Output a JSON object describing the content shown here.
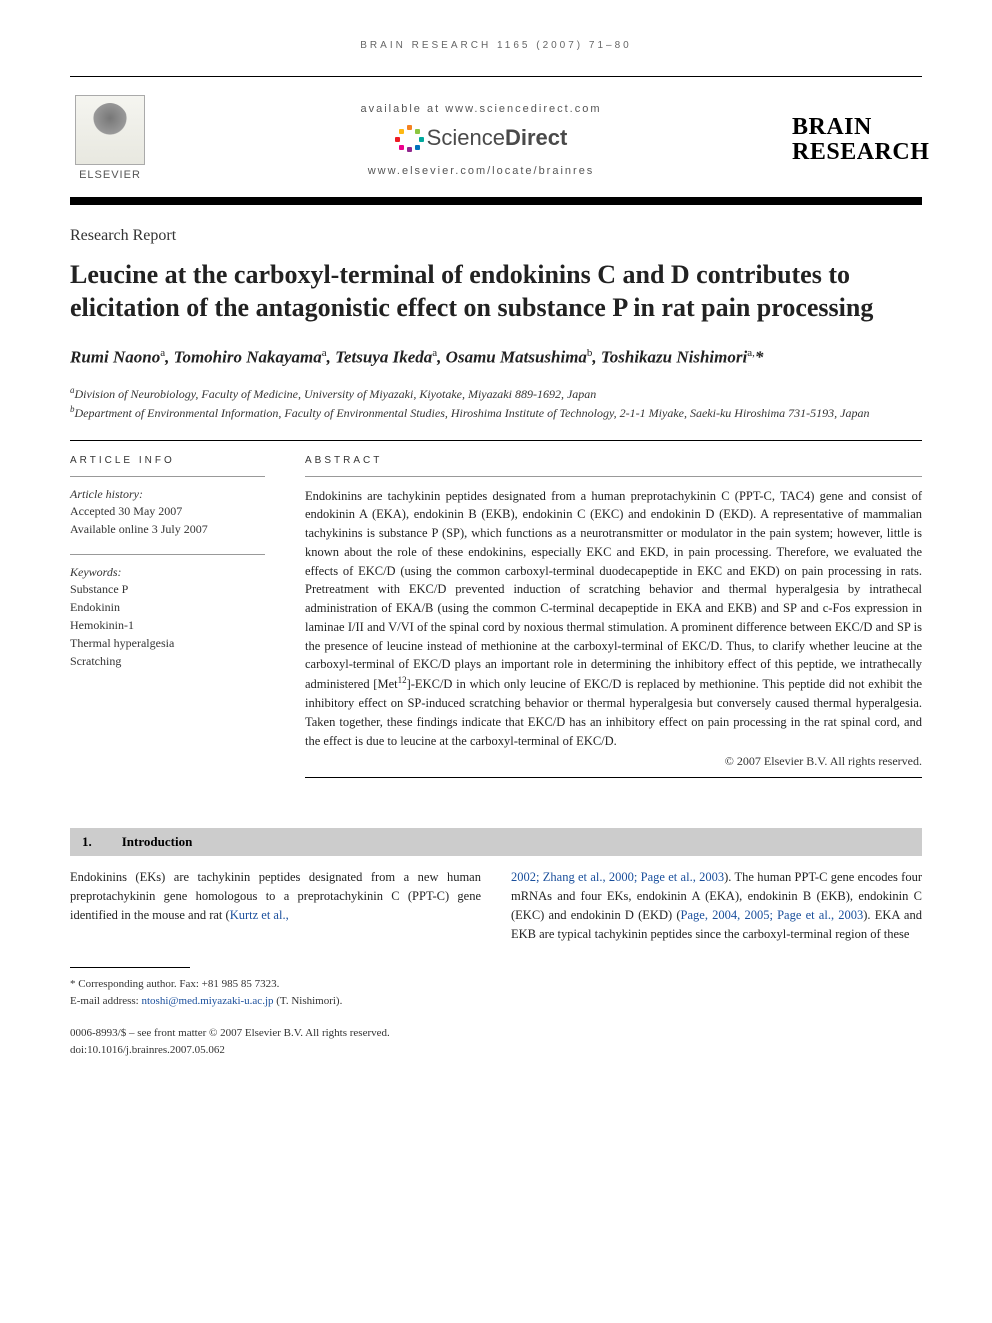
{
  "running_head": "BRAIN RESEARCH 1165 (2007) 71–80",
  "masthead": {
    "elsevier_label": "ELSEVIER",
    "available_at": "available at www.sciencedirect.com",
    "sd_brand_light": "Science",
    "sd_brand_bold": "Direct",
    "locate_url": "www.elsevier.com/locate/brainres",
    "journal_line1": "BRAIN",
    "journal_line2": "RESEARCH",
    "burst_colors": [
      "#f58220",
      "#8cc63f",
      "#00a99d",
      "#0072bc",
      "#92278f",
      "#ec008c",
      "#ed1c24",
      "#fdb913"
    ]
  },
  "article_type": "Research Report",
  "title": "Leucine at the carboxyl-terminal of endokinins C and D contributes to elicitation of the antagonistic effect on substance P in rat pain processing",
  "authors_html": "Rumi Naono<sup>a</sup>, Tomohiro Nakayama<sup>a</sup>, Tetsuya Ikeda<sup>a</sup>, Osamu Matsushima<sup>b</sup>, Toshikazu Nishimori<sup>a,</sup>*",
  "affiliations": [
    {
      "sup": "a",
      "text": "Division of Neurobiology, Faculty of Medicine, University of Miyazaki, Kiyotake, Miyazaki 889-1692, Japan"
    },
    {
      "sup": "b",
      "text": "Department of Environmental Information, Faculty of Environmental Studies, Hiroshima Institute of Technology, 2-1-1 Miyake, Saeki-ku Hiroshima 731-5193, Japan"
    }
  ],
  "article_info_head": "ARTICLE INFO",
  "abstract_head": "ABSTRACT",
  "history": {
    "label": "Article history:",
    "accepted": "Accepted 30 May 2007",
    "online": "Available online 3 July 2007"
  },
  "keywords": {
    "label": "Keywords:",
    "items": [
      "Substance P",
      "Endokinin",
      "Hemokinin-1",
      "Thermal hyperalgesia",
      "Scratching"
    ]
  },
  "abstract": "Endokinins are tachykinin peptides designated from a human preprotachykinin C (PPT-C, TAC4) gene and consist of endokinin A (EKA), endokinin B (EKB), endokinin C (EKC) and endokinin D (EKD). A representative of mammalian tachykinins is substance P (SP), which functions as a neurotransmitter or modulator in the pain system; however, little is known about the role of these endokinins, especially EKC and EKD, in pain processing. Therefore, we evaluated the effects of EKC/D (using the common carboxyl-terminal duodecapeptide in EKC and EKD) on pain processing in rats. Pretreatment with EKC/D prevented induction of scratching behavior and thermal hyperalgesia by intrathecal administration of EKA/B (using the common C-terminal decapeptide in EKA and EKB) and SP and c-Fos expression in laminae I/II and V/VI of the spinal cord by noxious thermal stimulation. A prominent difference between EKC/D and SP is the presence of leucine instead of methionine at the carboxyl-terminal of EKC/D. Thus, to clarify whether leucine at the carboxyl-terminal of EKC/D plays an important role in determining the inhibitory effect of this peptide, we intrathecally administered [Met<sup>12</sup>]-EKC/D in which only leucine of EKC/D is replaced by methionine. This peptide did not exhibit the inhibitory effect on SP-induced scratching behavior or thermal hyperalgesia but conversely caused thermal hyperalgesia. Taken together, these findings indicate that EKC/D has an inhibitory effect on pain processing in the rat spinal cord, and the effect is due to leucine at the carboxyl-terminal of EKC/D.",
  "abstract_copyright": "© 2007 Elsevier B.V. All rights reserved.",
  "section": {
    "num": "1.",
    "title": "Introduction"
  },
  "body": {
    "left": "Endokinins (EKs) are tachykinin peptides designated from a new human preprotachykinin gene homologous to a preprotachykinin C (PPT-C) gene identified in the mouse and rat (",
    "left_ref": "Kurtz et al.,",
    "right_ref": "2002; Zhang et al., 2000; Page et al., 2003",
    "right_a": "). The human PPT-C gene encodes four mRNAs and four EKs, endokinin A (EKA), endokinin B (EKB), endokinin C (EKC) and endokinin D (EKD) (",
    "right_ref2": "Page, 2004, 2005; Page et al., 2003",
    "right_b": "). EKA and EKB are typical tachykinin peptides since the carboxyl-terminal region of these"
  },
  "footnote": {
    "corresponding": "* Corresponding author. Fax: +81 985 85 7323.",
    "email_label": "E-mail address: ",
    "email": "ntoshi@med.miyazaki-u.ac.jp",
    "email_who": " (T. Nishimori)."
  },
  "bottom": {
    "line1": "0006-8993/$ – see front matter © 2007 Elsevier B.V. All rights reserved.",
    "line2": "doi:10.1016/j.brainres.2007.05.062"
  },
  "colors": {
    "link": "#1a4f9c",
    "rule": "#000000",
    "section_bg": "#cccccc"
  }
}
